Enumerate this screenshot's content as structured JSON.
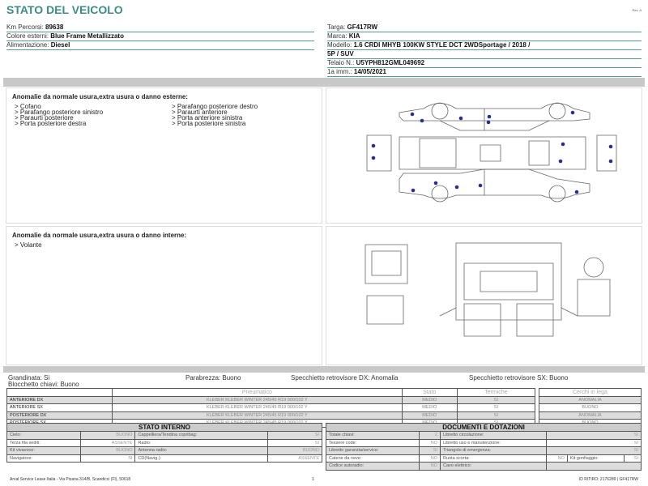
{
  "header": {
    "title": "STATO DEL VEICOLO",
    "rev": "Rev. A"
  },
  "vehicle_left": [
    {
      "label": "Km Percorsi:",
      "value": "89638"
    },
    {
      "label": "Colore esterni:",
      "value": "Blue Frame Metallizzato"
    },
    {
      "label": "Alimentazione:",
      "value": "Diesel"
    }
  ],
  "vehicle_right": [
    {
      "label": "Targa:",
      "value": "GF417RW"
    },
    {
      "label": "Marca:",
      "value": "KIA"
    },
    {
      "label": "Modello:",
      "value": "1.6 CRDI MHYB 100KW STYLE DCT 2WDSportage / 2018 /"
    },
    {
      "label": "",
      "value": "5P / SUV"
    },
    {
      "label": "Telaio N.:",
      "value": "U5YPH812GML049692"
    },
    {
      "label": "1a imm.:",
      "value": "14/05/2021"
    }
  ],
  "exterior": {
    "heading": "Anomalie da normale usura,extra usura o danno esterne:",
    "items": [
      "> Cofano",
      "> Parafango posteriore destro",
      "> Parafango posteriore sinistro",
      "> Paraurti anteriore",
      "> Paraurti posteriore",
      "> Porta anteriore sinistra",
      "> Porta posteriore destra",
      "> Porta posteriore sinistra"
    ]
  },
  "interior": {
    "heading": "Anomalie da normale usura,extra usura o danno interne:",
    "items": [
      "> Volante"
    ]
  },
  "conditions": {
    "grandinata": "Grandinata: Si",
    "blocchetto": "Blocchetto chiavi: Buono",
    "parabrezza": "Parabrezza: Buono",
    "spec_dx": "Specchietto retrovisore DX: Anomalia",
    "spec_sx": "Specchietto retrovisore SX: Buono"
  },
  "tyres": {
    "headers": [
      "",
      "Pneumatico",
      "Stato",
      "Termiche"
    ],
    "rows": [
      [
        "ANTERIORE DX",
        "KLEBER KLEBER WINTER 245/45 R19 000/102 Y",
        "MEDIO",
        "SI"
      ],
      [
        "ANTERIORE SX",
        "KLEBER KLEBER WINTER 245/45 R19 000/102 Y",
        "MEDIO",
        "SI"
      ],
      [
        "POSTERIORE DX",
        "KLEBER KLEBER WINTER 245/45 R19 000/102 Y",
        "MEDIO",
        "SI"
      ],
      [
        "POSTERIORE SX",
        "KLEBER KLEBER WINTER 245/45 R19 000/102 Y",
        "MEDIO",
        "SI"
      ]
    ]
  },
  "rims": {
    "header": "Cerchi in lega",
    "rows": [
      "ANOMALIA",
      "BUONO",
      "ANOMALIA",
      "BUONO"
    ]
  },
  "stato_interno": {
    "title": "STATO INTERNO",
    "rows": [
      [
        "Cielo:",
        "BUONO",
        "Cappelliera/Tendina copribag:",
        "SI"
      ],
      [
        "Terza fila sedili:",
        "ASSENTE",
        "Radio:",
        "SI"
      ],
      [
        "Kit vivavoce:",
        "BUONO",
        "Antenna radio:",
        "BUONO"
      ],
      [
        "Navigatore:",
        "SI",
        "CD(Navig.):",
        "ASSENTE"
      ]
    ]
  },
  "documenti": {
    "title": "DOCUMENTI E DOTAZIONI",
    "rows": [
      [
        "Totale chiavi:",
        "2",
        "Libretto circolazione:",
        "SI"
      ],
      [
        "Tessere code:",
        "NO",
        "Libretto uso e manutenzione:",
        "SI"
      ],
      [
        "Libretto garanzia/service:",
        "SI",
        "Triangolo di emergenza:",
        "SI"
      ],
      [
        "Catene da neve:",
        "NO",
        "Ruota scorta:",
        "NO",
        "Kit gonfiaggio:",
        "SI"
      ],
      [
        "Codice autoradio:",
        "NO",
        "Cavo elettrico:",
        ""
      ]
    ]
  },
  "footer": {
    "address": "Arval Service Lease Italia - Via Pisana 314/B, Scandicci (FI), 50018",
    "page": "1",
    "id": "ID RITIRO: 2176289 | GF417RW"
  },
  "colors": {
    "accent": "#3f8c84",
    "damage_dot": "#2a2f8c",
    "bar": "#c8c8c8"
  }
}
